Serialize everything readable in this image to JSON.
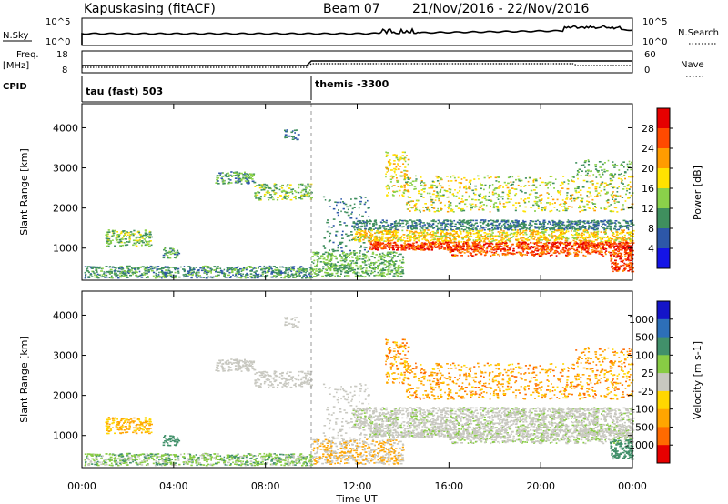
{
  "header": {
    "station": "Kapuskasing (fitACF)",
    "beam": "Beam 07",
    "date_range": "21/Nov/2016 - 22/Nov/2016"
  },
  "panels": {
    "nsky": {
      "label": "N.Sky",
      "left_ticks": [
        "10^5",
        "10^0"
      ],
      "right_ticks": [
        "10^5",
        "10^0"
      ],
      "right_label": "N.Search"
    },
    "freq": {
      "label_line1": "Freq.",
      "label_line2": "[MHz]",
      "left_ticks": [
        "18",
        "8"
      ],
      "right_ticks": [
        "60",
        "0"
      ],
      "right_label": "Nave"
    },
    "cpid": {
      "label": "CPID",
      "programs": [
        "tau (fast) 503",
        "themis -3300"
      ]
    }
  },
  "axes": {
    "ylabel": "Slant Range [km]",
    "yticks": [
      "4000",
      "3000",
      "2000",
      "1000"
    ],
    "xlabel": "Time UT",
    "xticks": [
      "00:00",
      "04:00",
      "08:00",
      "12:00",
      "16:00",
      "20:00",
      "00:00"
    ]
  },
  "colorbars": {
    "power": {
      "label": "Power [dB]",
      "ticks": [
        "28",
        "24",
        "20",
        "16",
        "12",
        "8",
        "4"
      ],
      "colors": [
        "#e60000",
        "#ff4a00",
        "#ff9c00",
        "#ffe200",
        "#8ad14a",
        "#3f8f5e",
        "#2d57a8",
        "#1414e6"
      ]
    },
    "velocity": {
      "label": "Velocity [m s-1]",
      "ticks": [
        "1000",
        "500",
        "100",
        "25",
        "-25",
        "-100",
        "-500",
        "-1000"
      ],
      "colors": [
        "#1414c8",
        "#2d6fb8",
        "#41906a",
        "#88cc44",
        "#c8c8c0",
        "#ffd700",
        "#ffa500",
        "#ff6a00",
        "#e60000"
      ]
    }
  },
  "chart_data": {
    "type": "heatmap",
    "title": "Kapuskasing (fitACF)  Beam 07  21/Nov/2016 - 22/Nov/2016",
    "xlabel": "Time UT",
    "ylabel": "Slant Range [km]",
    "xlim": [
      "00:00",
      "24:00"
    ],
    "ylim": [
      200,
      4600
    ],
    "panels": [
      "Power [dB]",
      "Velocity [m s-1]"
    ],
    "scatter_regions": [
      {
        "name": "ground-scatter-early",
        "time_start": 0.0,
        "time_end": 10.0,
        "range_start": 300,
        "range_end": 600,
        "power_db": 8,
        "velocity": "-25..25"
      },
      {
        "name": "patch-0130",
        "time_start": 1.0,
        "time_end": 3.0,
        "range_start": 1000,
        "range_end": 1500,
        "power_db": 12,
        "velocity": "-100..-500"
      },
      {
        "name": "band-0600-1000",
        "time_start": 5.8,
        "time_end": 10.0,
        "range_start": 2200,
        "range_end": 2900,
        "power_db": 10,
        "velocity": "-25..25"
      },
      {
        "name": "near-range-1000-1400",
        "time_start": 10.0,
        "time_end": 14.0,
        "range_start": 300,
        "range_end": 900,
        "power_db": 8,
        "velocity": "-25..25"
      },
      {
        "name": "main-echo-band",
        "time_start": 11.5,
        "time_end": 24.0,
        "range_start": 900,
        "range_end": 1700,
        "power_db": 26,
        "velocity": "-25..25"
      },
      {
        "name": "upper-band",
        "time_start": 13.2,
        "time_end": 24.0,
        "range_start": 1900,
        "range_end": 3200,
        "power_db": 14,
        "velocity": "-100..-1000"
      }
    ]
  }
}
